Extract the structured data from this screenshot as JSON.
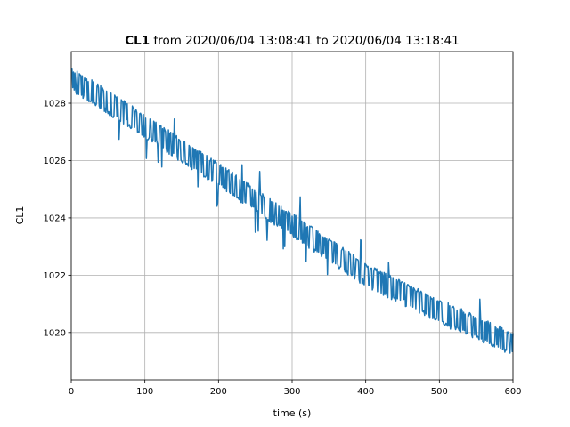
{
  "chart_data": {
    "type": "line",
    "title_bold": "CL1",
    "title_rest": " from 2020/06/04 13:08:41 to 2020/06/04 13:18:41",
    "xlabel": "time (s)",
    "ylabel": "CL1",
    "xlim": [
      0,
      600
    ],
    "ylim": [
      1018.35,
      1029.8
    ],
    "xticks": [
      0,
      100,
      200,
      300,
      400,
      500,
      600
    ],
    "yticks": [
      1020,
      1022,
      1024,
      1026,
      1028
    ],
    "grid": true,
    "series_color": "#1f77b4",
    "trend": {
      "x": [
        0,
        100,
        200,
        300,
        400,
        500,
        600
      ],
      "y": [
        1028.85,
        1027.2,
        1025.5,
        1023.75,
        1022.0,
        1020.75,
        1019.6
      ]
    },
    "noise_band": 0.35,
    "sample_interval_s": 1
  }
}
